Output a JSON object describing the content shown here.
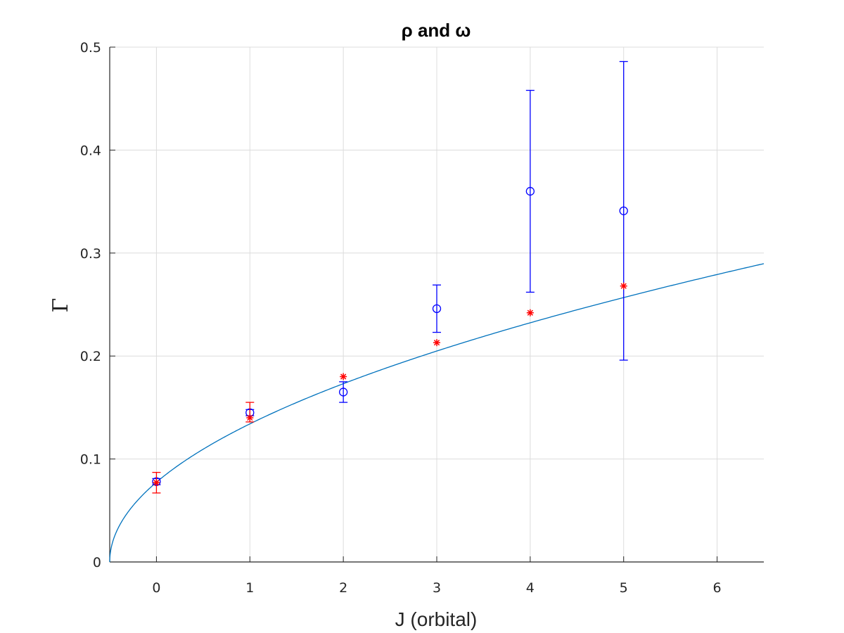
{
  "chart_data": {
    "type": "scatter",
    "title": "ρ and ω",
    "xlabel": "J (orbital)",
    "ylabel": "Γ",
    "xlim": [
      -0.5,
      6.5
    ],
    "ylim": [
      0,
      0.5
    ],
    "xticks": [
      0,
      1,
      2,
      3,
      4,
      5,
      6
    ],
    "yticks": [
      0,
      0.1,
      0.2,
      0.3,
      0.4,
      0.5
    ],
    "ytick_labels": [
      "0",
      "0.1",
      "0.2",
      "0.3",
      "0.4",
      "0.5"
    ],
    "grid": true,
    "legend": null,
    "series": [
      {
        "kind": "errorbar",
        "marker": "circle",
        "color": "#0000ff",
        "x": [
          0,
          1,
          2,
          3,
          4,
          5
        ],
        "y": [
          0.078,
          0.145,
          0.165,
          0.246,
          0.36,
          0.341
        ],
        "err_low": [
          0.003,
          0.003,
          0.01,
          0.023,
          0.098,
          0.145
        ],
        "err_high": [
          0.003,
          0.003,
          0.01,
          0.023,
          0.098,
          0.145
        ]
      },
      {
        "kind": "errorbar",
        "marker": "asterisk",
        "color": "#ff0000",
        "x": [
          0,
          1,
          2,
          3,
          4,
          5
        ],
        "y": [
          0.077,
          0.14,
          0.18,
          0.213,
          0.242,
          0.268
        ],
        "err_low": [
          0.01,
          0.004,
          0,
          0,
          0,
          0
        ],
        "err_high": [
          0.01,
          0.015,
          0,
          0,
          0,
          0
        ]
      },
      {
        "kind": "line",
        "color": "#0072bd",
        "function": "y = 0.1095 * sqrt(x + 0.5)",
        "x_range": [
          -0.5,
          6.5
        ]
      }
    ]
  }
}
